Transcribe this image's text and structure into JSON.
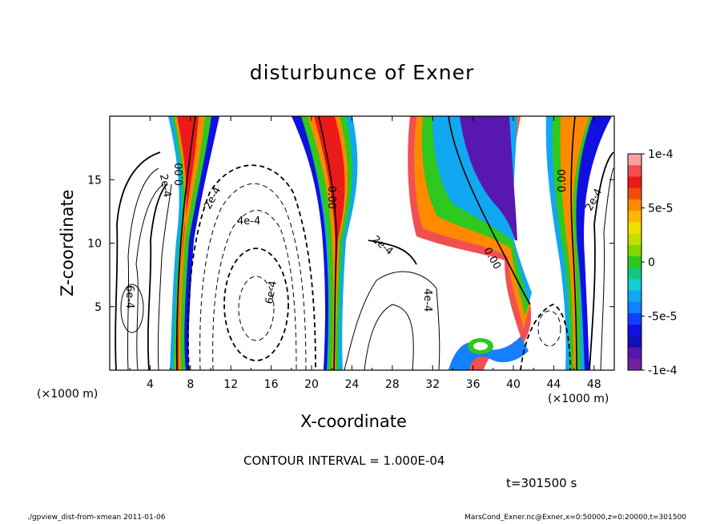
{
  "chart_data": {
    "type": "heatmap",
    "title": "disturbunce of Exner",
    "xlabel": "X-coordinate",
    "ylabel": "Z-coordinate",
    "x_unit": "(×1000 m)",
    "x_unit_right": "(×1000 m)",
    "x_ticks": [
      "4",
      "8",
      "12",
      "16",
      "20",
      "24",
      "28",
      "32",
      "36",
      "40",
      "44",
      "48"
    ],
    "y_ticks": [
      "5",
      "10",
      "15"
    ],
    "xlim": [
      0,
      50
    ],
    "ylim": [
      0,
      20
    ],
    "colorbar": {
      "range": [
        -0.0001,
        0.0001
      ],
      "labels": [
        "1e-4",
        "5e-5",
        "0",
        "-5e-5",
        "-1e-4"
      ],
      "colors": [
        "#f9a0a0",
        "#f25050",
        "#ec1a1a",
        "#f54a10",
        "#ff8a00",
        "#ffb800",
        "#f0e000",
        "#c0e000",
        "#80d800",
        "#2ec81e",
        "#10c880",
        "#10d0d0",
        "#10a8f0",
        "#1480ff",
        "#1040ff",
        "#1010e0",
        "#1010b8",
        "#5818b0",
        "#7020a0"
      ]
    },
    "contour_labels": [
      "2e-4",
      "0.00",
      "2e-4",
      "4e-4",
      "6e-4",
      "0.00",
      "2e-4",
      "0.00",
      "0.00",
      "2e-4",
      "6e-4",
      "4e-4"
    ],
    "annotations": {
      "contour_interval": "CONTOUR INTERVAL = 1.000E-04",
      "time": "t=301500 s"
    },
    "grid": false,
    "legend": "colorbar-right"
  },
  "footer": {
    "left": "./gpview_dist-from-xmean 2011-01-06",
    "right": "MarsCond_Exner.nc@Exner,x=0:50000,z=0:20000,t=301500"
  }
}
